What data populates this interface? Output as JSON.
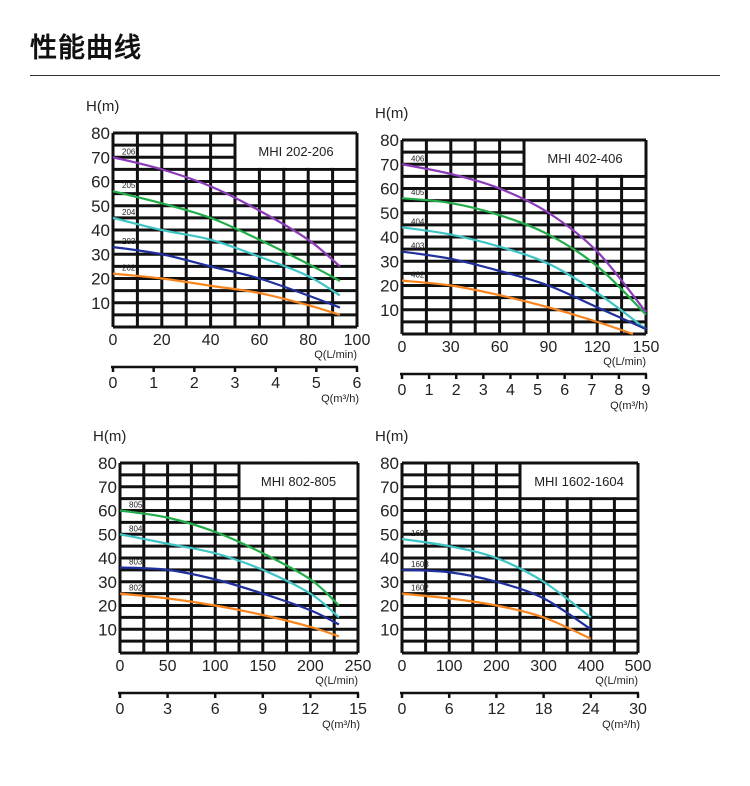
{
  "page_title": "性能曲线",
  "colors": {
    "purple": "#8b3bb8",
    "green": "#22ad4a",
    "cyan": "#3fc4c4",
    "blue": "#1f2f9c",
    "orange": "#f7851f"
  },
  "chart_data": [
    {
      "type": "line",
      "title": "MHI 202-206",
      "ylabel": "H(m)",
      "xlabel": "Q(L/min)",
      "xlabel2": "Q(m³/h)",
      "xlim": [
        0,
        100
      ],
      "ylim": [
        0,
        80
      ],
      "x_ticks": [
        0,
        20,
        40,
        60,
        80,
        100
      ],
      "y_ticks": [
        10,
        20,
        30,
        40,
        50,
        60,
        70,
        80
      ],
      "x2lim": [
        0,
        6
      ],
      "x2_ticks": [
        0,
        1,
        2,
        3,
        4,
        5,
        6
      ],
      "grid": true,
      "series": [
        {
          "name": "206",
          "color": "purple",
          "x": [
            0,
            20,
            40,
            60,
            80,
            93
          ],
          "y": [
            70,
            65,
            58,
            48,
            36,
            25
          ]
        },
        {
          "name": "205",
          "color": "green",
          "x": [
            0,
            20,
            40,
            60,
            80,
            93
          ],
          "y": [
            56,
            51,
            45,
            36,
            26,
            19
          ]
        },
        {
          "name": "204",
          "color": "cyan",
          "x": [
            0,
            20,
            40,
            60,
            80,
            93
          ],
          "y": [
            45,
            40,
            36,
            29,
            21,
            13
          ]
        },
        {
          "name": "203",
          "color": "blue",
          "x": [
            0,
            20,
            40,
            60,
            80,
            93
          ],
          "y": [
            33,
            30,
            25,
            20,
            13,
            8
          ]
        },
        {
          "name": "202",
          "color": "orange",
          "x": [
            0,
            20,
            40,
            60,
            80,
            93
          ],
          "y": [
            22,
            20,
            17,
            14,
            9,
            5
          ]
        }
      ]
    },
    {
      "type": "line",
      "title": "MHI 402-406",
      "ylabel": "H(m)",
      "xlabel": "Q(L/min)",
      "xlabel2": "Q(m³/h)",
      "xlim": [
        0,
        150
      ],
      "ylim": [
        0,
        80
      ],
      "x_ticks": [
        0,
        30,
        60,
        90,
        120,
        150
      ],
      "y_ticks": [
        10,
        20,
        30,
        40,
        50,
        60,
        70,
        80
      ],
      "x2lim": [
        0,
        9
      ],
      "x2_ticks": [
        0,
        1,
        2,
        3,
        4,
        5,
        6,
        7,
        8,
        9
      ],
      "grid": true,
      "series": [
        {
          "name": "406",
          "color": "purple",
          "x": [
            0,
            30,
            60,
            90,
            120,
            150
          ],
          "y": [
            70,
            66,
            60,
            50,
            34,
            9
          ]
        },
        {
          "name": "405",
          "color": "green",
          "x": [
            0,
            30,
            60,
            90,
            120,
            150
          ],
          "y": [
            56,
            54,
            49,
            41,
            28,
            8
          ]
        },
        {
          "name": "404",
          "color": "cyan",
          "x": [
            0,
            30,
            60,
            90,
            120,
            150
          ],
          "y": [
            44,
            41,
            36,
            29,
            17,
            2
          ]
        },
        {
          "name": "403",
          "color": "blue",
          "x": [
            0,
            30,
            60,
            90,
            120,
            150
          ],
          "y": [
            34,
            31,
            26,
            20,
            11,
            2
          ]
        },
        {
          "name": "402",
          "color": "orange",
          "x": [
            0,
            30,
            60,
            90,
            120,
            142
          ],
          "y": [
            22,
            20,
            16,
            11,
            5,
            0
          ]
        }
      ]
    },
    {
      "type": "line",
      "title": "MHI 802-805",
      "ylabel": "H(m)",
      "xlabel": "Q(L/min)",
      "xlabel2": "Q(m³/h)",
      "xlim": [
        0,
        250
      ],
      "ylim": [
        0,
        80
      ],
      "x_ticks": [
        0,
        50,
        100,
        150,
        200,
        250
      ],
      "y_ticks": [
        10,
        20,
        30,
        40,
        50,
        60,
        70,
        80
      ],
      "x2lim": [
        0,
        15
      ],
      "x2_ticks": [
        0,
        3,
        6,
        9,
        12,
        15
      ],
      "grid": true,
      "series": [
        {
          "name": "805",
          "color": "green",
          "x": [
            0,
            50,
            100,
            150,
            200,
            230
          ],
          "y": [
            60,
            57,
            51,
            42,
            31,
            20
          ]
        },
        {
          "name": "804",
          "color": "cyan",
          "x": [
            0,
            50,
            100,
            150,
            200,
            230
          ],
          "y": [
            50,
            46,
            42,
            35,
            25,
            15
          ]
        },
        {
          "name": "803",
          "color": "blue",
          "x": [
            0,
            50,
            100,
            150,
            200,
            230
          ],
          "y": [
            36,
            35,
            31,
            25,
            18,
            12
          ]
        },
        {
          "name": "802",
          "color": "orange",
          "x": [
            0,
            50,
            100,
            150,
            200,
            230
          ],
          "y": [
            25,
            23,
            20,
            16,
            11,
            7
          ]
        }
      ]
    },
    {
      "type": "line",
      "title": "MHI 1602-1604",
      "ylabel": "H(m)",
      "xlabel": "Q(L/min)",
      "xlabel2": "Q(m³/h)",
      "xlim": [
        0,
        500
      ],
      "ylim": [
        0,
        80
      ],
      "x_ticks": [
        0,
        100,
        200,
        300,
        400,
        500
      ],
      "y_ticks": [
        10,
        20,
        30,
        40,
        50,
        60,
        70,
        80
      ],
      "x2lim": [
        0,
        30
      ],
      "x2_ticks": [
        0,
        6,
        12,
        18,
        24,
        30
      ],
      "grid": true,
      "series": [
        {
          "name": "1604",
          "color": "cyan",
          "x": [
            0,
            100,
            200,
            300,
            400
          ],
          "y": [
            48,
            45,
            40,
            30,
            15
          ]
        },
        {
          "name": "1603",
          "color": "blue",
          "x": [
            0,
            100,
            200,
            300,
            400
          ],
          "y": [
            35,
            34,
            30,
            23,
            10
          ]
        },
        {
          "name": "1602",
          "color": "orange",
          "x": [
            0,
            100,
            200,
            300,
            400
          ],
          "y": [
            25,
            23,
            20,
            15,
            6
          ]
        }
      ]
    }
  ]
}
